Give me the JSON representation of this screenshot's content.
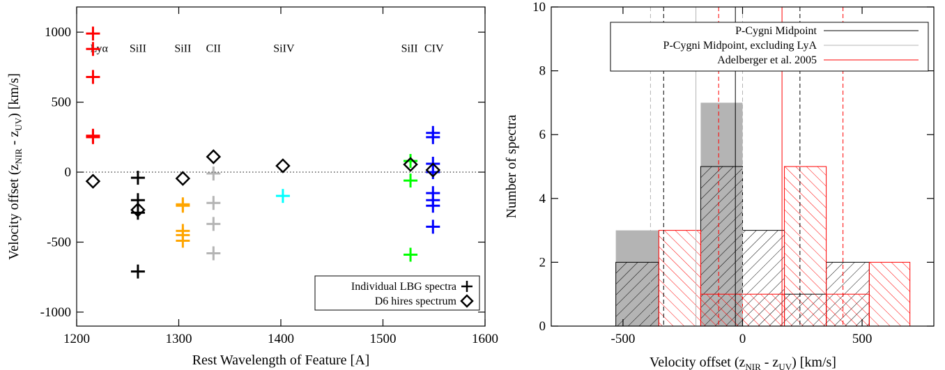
{
  "chart_data": [
    {
      "type": "scatter",
      "xlabel": "Rest Wavelength of Feature [A]",
      "ylabel_main": "Velocity offset (z",
      "ylabel_sub1": "NIR",
      "ylabel_mid": " - z",
      "ylabel_sub2": "UV",
      "ylabel_end": ") [km/s]",
      "xlim": [
        1200,
        1600
      ],
      "ylim": [
        -1100,
        1180
      ],
      "xticks": [
        1200,
        1300,
        1400,
        1500,
        1600
      ],
      "yticks": [
        -1000,
        -500,
        0,
        500,
        1000
      ],
      "zero_line": true,
      "feature_labels": [
        {
          "text": "Lyα",
          "x": 1222,
          "y": 860
        },
        {
          "text": "SiII",
          "x": 1260,
          "y": 860
        },
        {
          "text": "SiII",
          "x": 1304,
          "y": 860
        },
        {
          "text": "CII",
          "x": 1334,
          "y": 860
        },
        {
          "text": "SiIV",
          "x": 1403,
          "y": 860
        },
        {
          "text": "SiII",
          "x": 1526,
          "y": 860
        },
        {
          "text": "CIV",
          "x": 1550,
          "y": 860
        }
      ],
      "series": [
        {
          "name": "Individual LBG spectra",
          "marker": "plus",
          "groups": [
            {
              "color": "#ff0000",
              "x": 1216,
              "y": [
                990,
                880,
                680,
                260,
                250
              ]
            },
            {
              "color": "#000000",
              "x": 1260,
              "y": [
                -40,
                -200,
                -290,
                -710
              ]
            },
            {
              "color": "#ffa500",
              "x": 1304,
              "y": [
                -230,
                -240,
                -420,
                -450,
                -490
              ]
            },
            {
              "color": "#b4b4b4",
              "x": 1334,
              "y": [
                -10,
                -220,
                -370,
                -580
              ]
            },
            {
              "color": "#00ffff",
              "x": 1402,
              "y": [
                -170
              ]
            },
            {
              "color": "#00ff00",
              "x": 1527,
              "y": [
                80,
                -60,
                -590
              ]
            },
            {
              "color": "#0000ff",
              "x": 1549,
              "y": [
                280,
                250,
                60,
                0,
                -150,
                -200,
                -240,
                -390
              ]
            }
          ]
        },
        {
          "name": "D6 hires spectrum",
          "marker": "diamond",
          "color": "#000000",
          "points": [
            [
              1216,
              -65
            ],
            [
              1260,
              -270
            ],
            [
              1304,
              -45
            ],
            [
              1334,
              110
            ],
            [
              1402,
              45
            ],
            [
              1527,
              55
            ],
            [
              1549,
              15
            ]
          ]
        }
      ],
      "legend": {
        "position": "bottom-right",
        "entries": [
          "Individual LBG spectra",
          "D6 hires spectrum"
        ]
      }
    },
    {
      "type": "histogram",
      "xlabel_main": "Velocity offset (z",
      "xlabel_sub1": "NIR",
      "xlabel_mid": " - z",
      "xlabel_sub2": "UV",
      "xlabel_end": ") [km/s]",
      "ylabel": "Number of spectra",
      "xlim": [
        -800,
        800
      ],
      "ylim": [
        0,
        10
      ],
      "xticks": [
        -500,
        0,
        500
      ],
      "yticks": [
        0,
        2,
        4,
        6,
        8,
        10
      ],
      "series": [
        {
          "name": "P-Cygni Midpoint",
          "color": "#000000",
          "style": "hatch-back",
          "bin_edges": [
            -530,
            -350,
            -175,
            0,
            175,
            350,
            530
          ],
          "counts": [
            2,
            0,
            5,
            3,
            1,
            2
          ],
          "mean": -30,
          "sigma_lines": [
            -330,
            240
          ]
        },
        {
          "name": "P-Cygni Midpoint, excluding LyA",
          "color": "#b4b4b4",
          "style": "filled",
          "bin_edges": [
            -530,
            -350,
            -175,
            0
          ],
          "counts": [
            3,
            0,
            7
          ],
          "mean": -195,
          "sigma_lines": [
            -385,
            0
          ]
        },
        {
          "name": "Adelberger et al. 2005",
          "color": "#ff0000",
          "style": "hatch-forward",
          "bin_edges": [
            -350,
            -175,
            0,
            175,
            350,
            530,
            700
          ],
          "counts": [
            3,
            1,
            1,
            5,
            1,
            2
          ],
          "mean": 165,
          "sigma_lines": [
            -100,
            420
          ]
        }
      ],
      "legend": {
        "position": "top-right",
        "entries": [
          "P-Cygni Midpoint",
          "P-Cygni Midpoint, excluding LyA",
          "Adelberger et al. 2005"
        ]
      }
    }
  ]
}
